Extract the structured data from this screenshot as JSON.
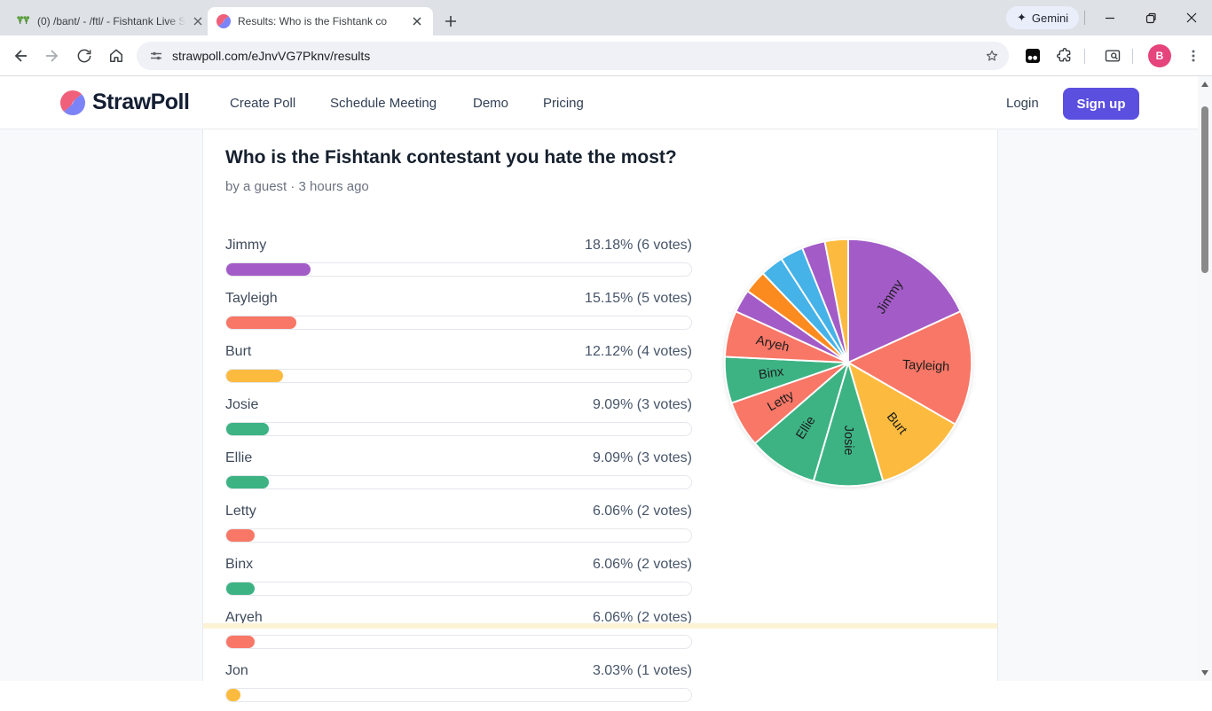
{
  "browser": {
    "tabs": [
      {
        "title": "(0) /bant/ - /ftl/ - Fishtank Live S",
        "favicon": "clover-icon"
      },
      {
        "title": "Results: Who is the Fishtank co",
        "favicon": "strawpoll-icon"
      }
    ],
    "gemini_label": "Gemini",
    "url": "strawpoll.com/eJnvVG7Pknv/results",
    "avatar_initial": "B"
  },
  "site": {
    "logo_text": "StrawPoll",
    "nav": [
      {
        "label": "Create Poll"
      },
      {
        "label": "Schedule Meeting"
      },
      {
        "label": "Demo"
      },
      {
        "label": "Pricing"
      }
    ],
    "login_label": "Login",
    "signup_label": "Sign up"
  },
  "poll": {
    "title": "Who is the Fishtank contestant you hate the most?",
    "byline": "by a guest · 3 hours ago",
    "options": [
      {
        "name": "Jimmy",
        "percent": "18.18%",
        "votes_label": "(6 votes)",
        "pct": 18.18,
        "color": "#a35cc7"
      },
      {
        "name": "Tayleigh",
        "percent": "15.15%",
        "votes_label": "(5 votes)",
        "pct": 15.15,
        "color": "#f87767"
      },
      {
        "name": "Burt",
        "percent": "12.12%",
        "votes_label": "(4 votes)",
        "pct": 12.12,
        "color": "#fcbb3f"
      },
      {
        "name": "Josie",
        "percent": "9.09%",
        "votes_label": "(3 votes)",
        "pct": 9.09,
        "color": "#3db384"
      },
      {
        "name": "Ellie",
        "percent": "9.09%",
        "votes_label": "(3 votes)",
        "pct": 9.09,
        "color": "#3db384"
      },
      {
        "name": "Letty",
        "percent": "6.06%",
        "votes_label": "(2 votes)",
        "pct": 6.06,
        "color": "#f87767"
      },
      {
        "name": "Binx",
        "percent": "6.06%",
        "votes_label": "(2 votes)",
        "pct": 6.06,
        "color": "#3db384"
      },
      {
        "name": "Aryeh",
        "percent": "6.06%",
        "votes_label": "(2 votes)",
        "pct": 6.06,
        "color": "#f87767"
      },
      {
        "name": "Jon",
        "percent": "3.03%",
        "votes_label": "(1 votes)",
        "pct": 3.03,
        "color": "#fcbb3f"
      }
    ]
  },
  "chart_data": {
    "type": "pie",
    "legend_position": "none",
    "start_angle_deg_from_top": 0,
    "direction": "clockwise",
    "slices": [
      {
        "label": "Jimmy",
        "percent": 18.18,
        "votes": 6,
        "color": "#a35cc7"
      },
      {
        "label": "Tayleigh",
        "percent": 15.15,
        "votes": 5,
        "color": "#f87767"
      },
      {
        "label": "Burt",
        "percent": 12.12,
        "votes": 4,
        "color": "#fcbb3f"
      },
      {
        "label": "Josie",
        "percent": 9.09,
        "votes": 3,
        "color": "#3db384"
      },
      {
        "label": "Ellie",
        "percent": 9.09,
        "votes": 3,
        "color": "#3db384"
      },
      {
        "label": "Letty",
        "percent": 6.06,
        "votes": 2,
        "color": "#f87767"
      },
      {
        "label": "Binx",
        "percent": 6.06,
        "votes": 2,
        "color": "#3db384"
      },
      {
        "label": "Aryeh",
        "percent": 6.06,
        "votes": 2,
        "color": "#f87767"
      },
      {
        "label": "",
        "percent": 3.03,
        "votes": 1,
        "color": "#a35cc7"
      },
      {
        "label": "",
        "percent": 3.03,
        "votes": 1,
        "color": "#fb8b1f"
      },
      {
        "label": "",
        "percent": 3.03,
        "votes": 1,
        "color": "#45b2e8"
      },
      {
        "label": "",
        "percent": 3.03,
        "votes": 1,
        "color": "#45b2e8"
      },
      {
        "label": "",
        "percent": 3.03,
        "votes": 1,
        "color": "#a35cc7"
      },
      {
        "label": "",
        "percent": 3.03,
        "votes": 1,
        "color": "#fcbb3f"
      }
    ]
  }
}
